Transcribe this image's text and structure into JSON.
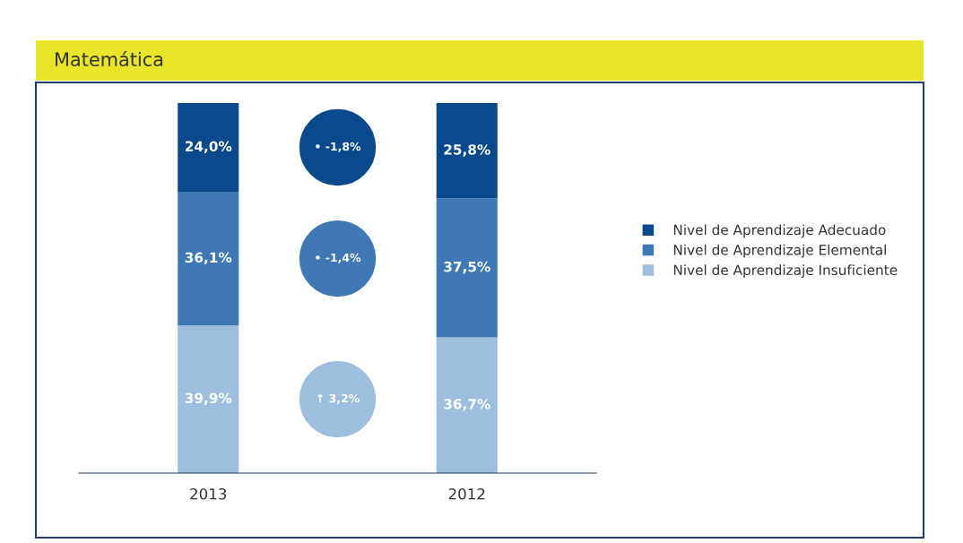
{
  "chart_data": {
    "type": "bar",
    "stacked": true,
    "title": "Matemática",
    "categories": [
      "2013",
      "2012"
    ],
    "ylim": [
      0,
      100
    ],
    "tick_labels": "x",
    "legend": "right",
    "grid": false,
    "series": [
      {
        "name": "Nivel de Aprendizaje Insuficiente",
        "color": "#9dbedf",
        "values": [
          39.9,
          36.7
        ],
        "value_labels": [
          "39,9%",
          "36,7%"
        ]
      },
      {
        "name": "Nivel de Aprendizaje Elemental",
        "color": "#3f79b5",
        "values": [
          36.1,
          37.5
        ],
        "value_labels": [
          "36,1%",
          "37,5%"
        ]
      },
      {
        "name": "Nivel de Aprendizaje Adecuado",
        "color": "#0a4a8c",
        "values": [
          24.0,
          25.8
        ],
        "value_labels": [
          "24,0%",
          "25,8%"
        ]
      }
    ],
    "annotations": [
      "• -1,8%",
      "• -1,4%",
      "↑ 3,2%"
    ]
  }
}
